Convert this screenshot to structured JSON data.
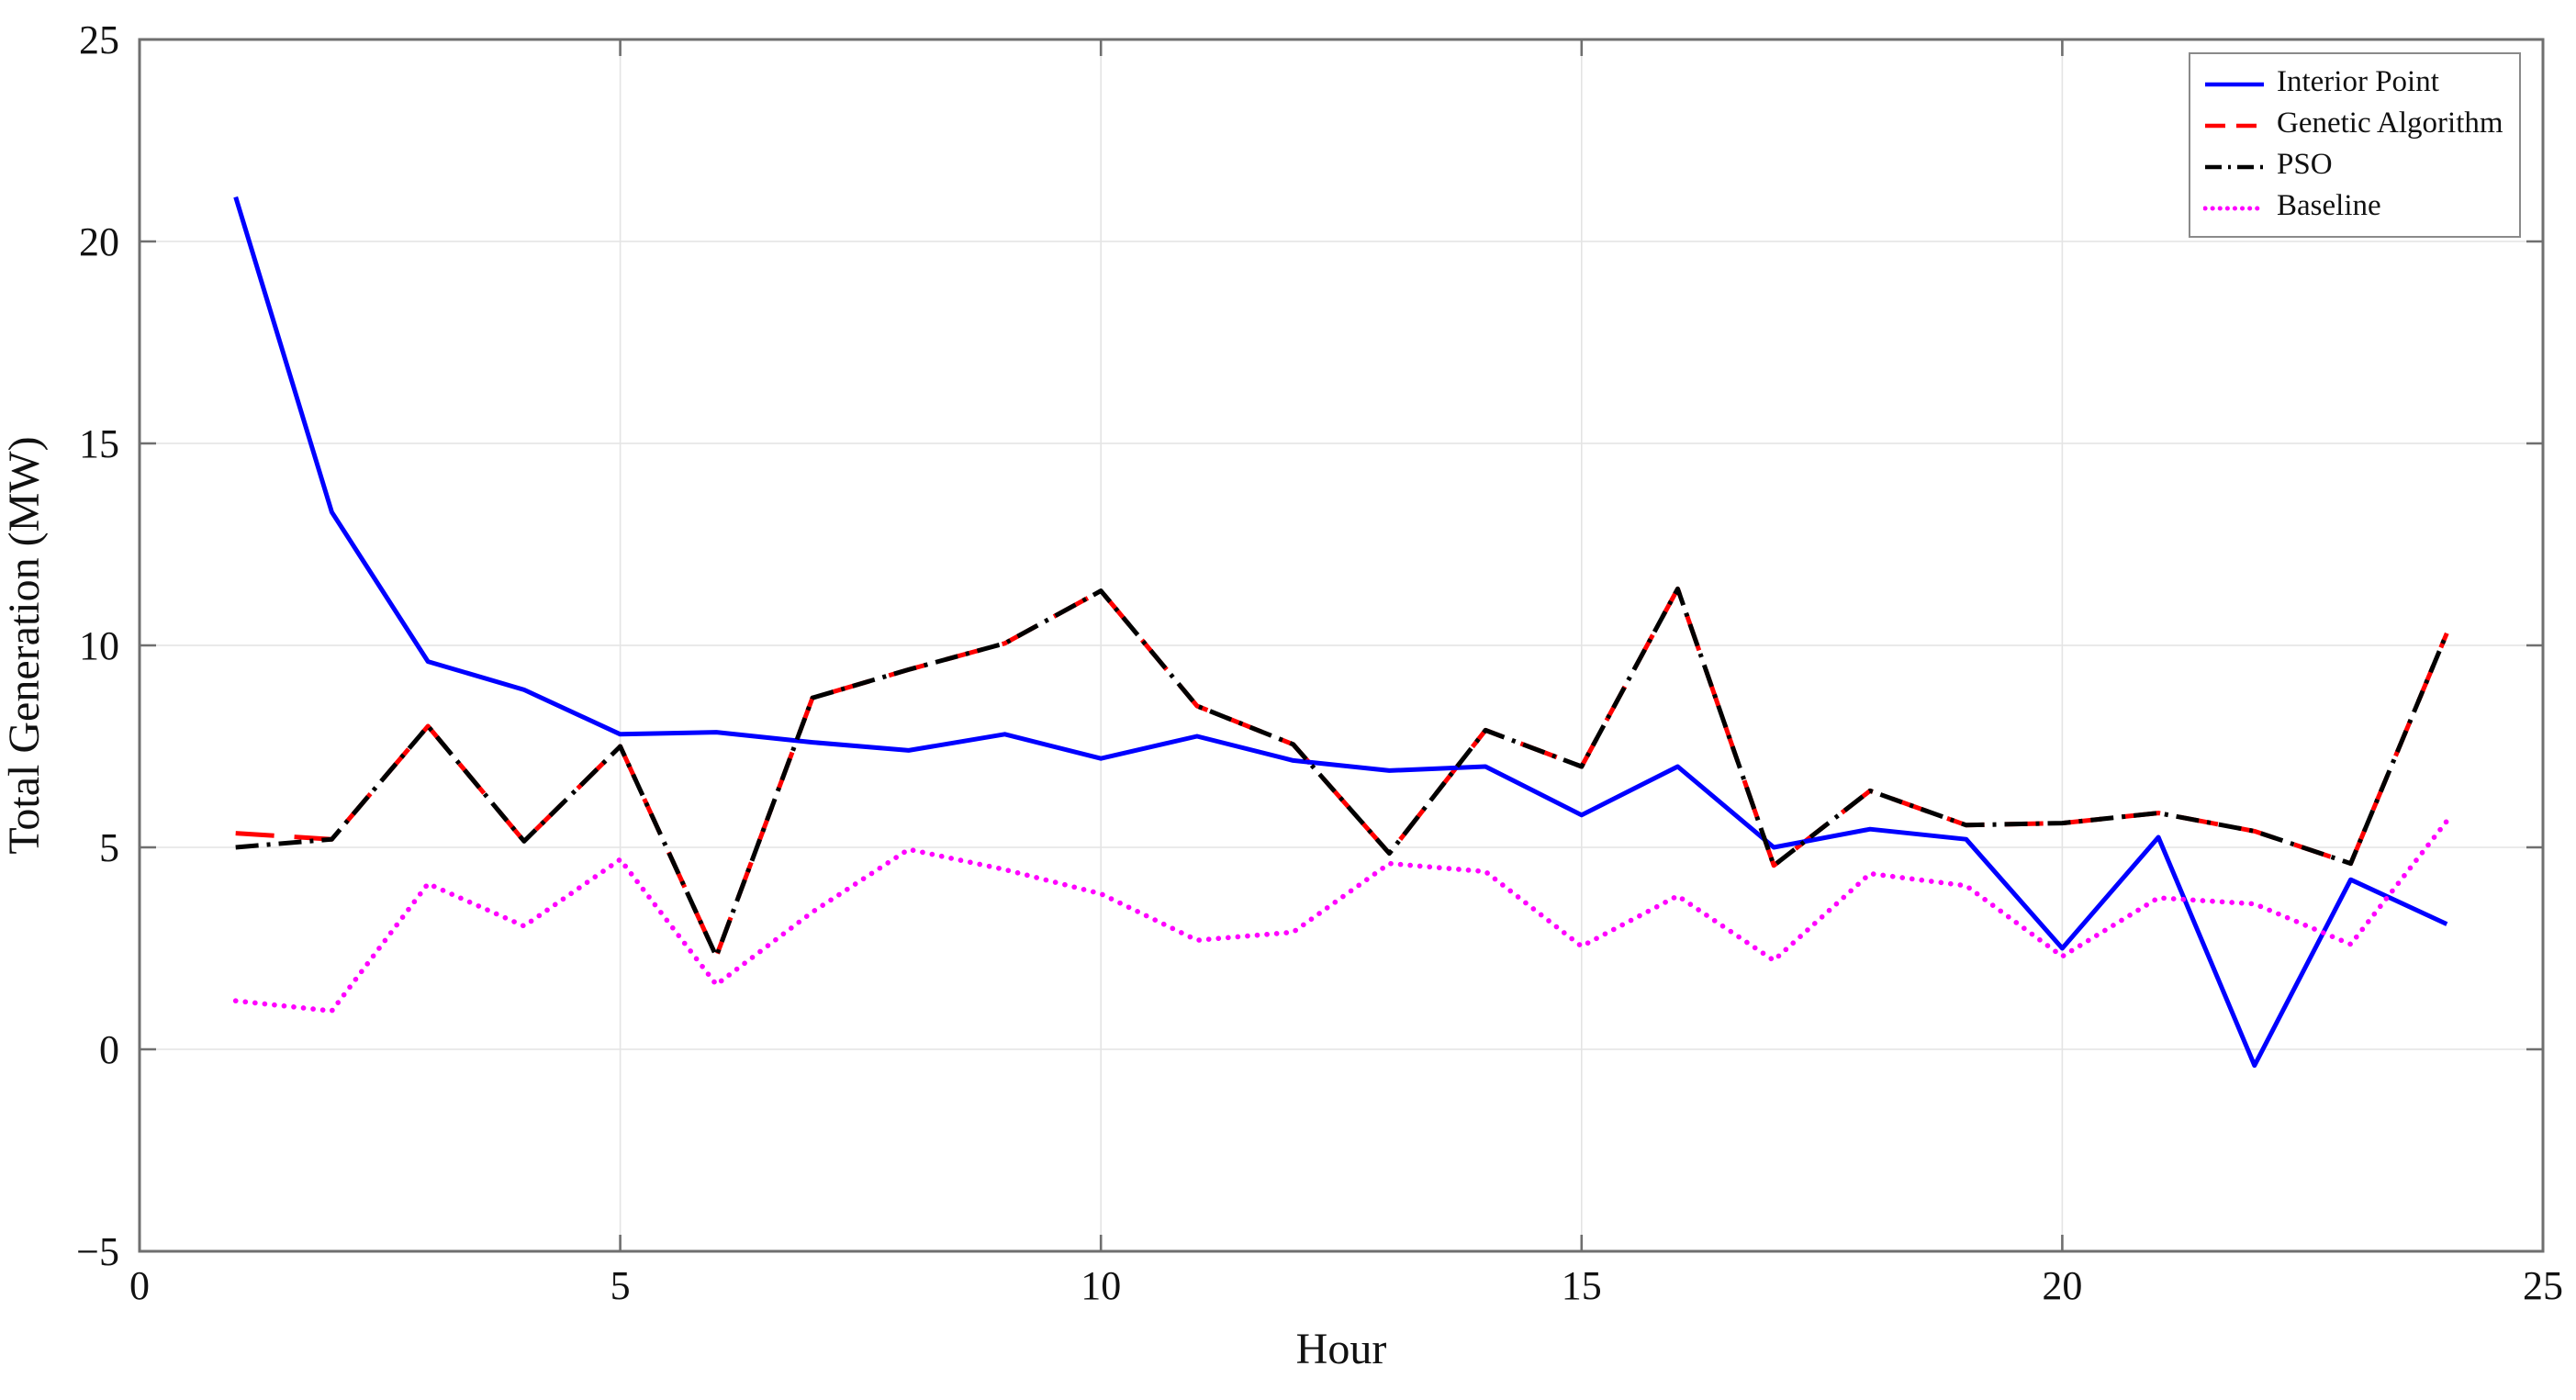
{
  "figure": {
    "background": "#ffffff",
    "axis_color": "#6f6f6f",
    "grid_color": "#e4e4e4",
    "text_color": "#111111"
  },
  "chart_data": {
    "type": "line",
    "title": "",
    "xlabel": "Hour",
    "ylabel": "Total Generation (MW)",
    "xlim": [
      0,
      25
    ],
    "ylim": [
      -5,
      25
    ],
    "xticks": [
      0,
      5,
      10,
      15,
      20,
      25
    ],
    "yticks": [
      -5,
      0,
      5,
      10,
      15,
      20,
      25
    ],
    "grid": true,
    "legend_position": "top-right",
    "x": [
      1,
      2,
      3,
      4,
      5,
      6,
      7,
      8,
      9,
      10,
      11,
      12,
      13,
      14,
      15,
      16,
      17,
      18,
      19,
      20,
      21,
      22,
      23,
      24
    ],
    "series": [
      {
        "name": "Interior Point",
        "color": "#0000ff",
        "style": "solid",
        "values": [
          21.1,
          13.3,
          9.6,
          8.9,
          7.8,
          7.85,
          7.6,
          7.4,
          7.8,
          7.2,
          7.75,
          7.15,
          6.9,
          7.0,
          5.8,
          7.0,
          5.0,
          5.45,
          5.2,
          2.5,
          5.25,
          -0.4,
          4.2,
          3.1
        ]
      },
      {
        "name": "Genetic Algorithm",
        "color": "#ff0000",
        "style": "dashed",
        "values": [
          5.35,
          5.2,
          8.0,
          5.15,
          7.5,
          2.3,
          8.7,
          9.4,
          10.05,
          11.35,
          8.5,
          7.55,
          4.85,
          7.9,
          7.0,
          11.4,
          4.55,
          6.4,
          5.55,
          5.6,
          5.85,
          5.4,
          4.6,
          10.3
        ]
      },
      {
        "name": "PSO",
        "color": "#000000",
        "style": "dashdot",
        "values": [
          5.0,
          5.2,
          8.0,
          5.15,
          7.5,
          2.3,
          8.7,
          9.4,
          10.05,
          11.35,
          8.5,
          7.55,
          4.85,
          7.9,
          7.0,
          11.4,
          4.55,
          6.4,
          5.55,
          5.6,
          5.85,
          5.4,
          4.6,
          10.3
        ]
      },
      {
        "name": "Baseline",
        "color": "#ff00ff",
        "style": "dotted",
        "values": [
          1.2,
          0.95,
          4.1,
          3.05,
          4.7,
          1.6,
          3.4,
          4.95,
          4.45,
          3.85,
          2.7,
          2.9,
          4.6,
          4.4,
          2.55,
          3.8,
          2.2,
          4.35,
          4.05,
          2.3,
          3.75,
          3.6,
          2.6,
          5.65
        ]
      }
    ]
  }
}
